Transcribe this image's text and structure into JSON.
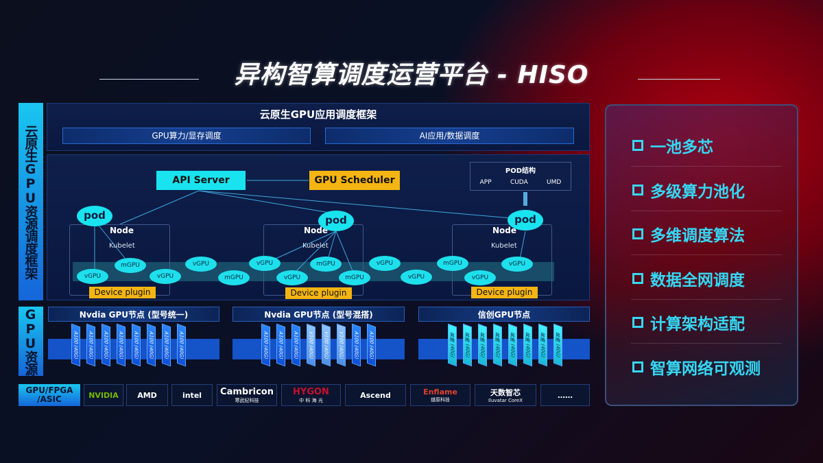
{
  "title": "异构智算调度运营平台 - HISO",
  "left_labels": {
    "framework": "云原生GPU资源调度框架",
    "gpu": "GPU资源"
  },
  "framework": {
    "header": "云原生GPU应用调度框架",
    "bar1": "GPU算力/显存调度",
    "bar2": "AI应用/数据调度",
    "api_server": "API Server",
    "gpu_scheduler": "GPU Scheduler",
    "pod_struct": {
      "title": "POD结构",
      "items": [
        "APP",
        "CUDA",
        "UMD"
      ]
    },
    "pod": "pod",
    "node": "Node",
    "kubelet": "Kubelet",
    "device_plugin": "Device plugin",
    "chips": [
      "vGPU",
      "mGPU",
      "vGPU",
      "vGPU",
      "mGPU",
      "vGPU",
      "vGPU",
      "mGPU",
      "mGPU",
      "vGPU",
      "vGPU",
      "mGPU",
      "vGPU",
      "vGPU"
    ]
  },
  "gpu_nodes": [
    {
      "title": "Nvdia GPU节点 (型号统一)",
      "cards": [
        "A100 (40G)",
        "A100 (40G)",
        "A100 (40G)",
        "A100 (40G)",
        "A100 (40G)",
        "A100 (40G)",
        "A100 (40G)",
        "A100 (40G)"
      ]
    },
    {
      "title": "Nvdia GPU节点 (型号混搭)",
      "cards": [
        "A100 (40G)",
        "A100 (40G)",
        "A100 (40G)",
        "V100 (40G)",
        "V100 (40G)",
        "V100 (40G)",
        "A100 (40G)",
        "A100 (40G)"
      ]
    },
    {
      "title": "信创GPU节点",
      "cards": [
        "昇腾 (40G)",
        "昇腾 (40G)",
        "昇腾 (40G)",
        "昇腾 (40G)",
        "昇腾 (40G)",
        "昇腾 (40G)",
        "昇腾 (40G)",
        "昇腾 (40G)"
      ]
    }
  ],
  "vendors": {
    "label": "GPU/FPGA /ASIC",
    "items": [
      {
        "name": "NVIDIA",
        "sub": ""
      },
      {
        "name": "AMD",
        "sub": ""
      },
      {
        "name": "intel",
        "sub": ""
      },
      {
        "name": "Cambricon",
        "sub": "寒武纪科技"
      },
      {
        "name": "HYGON",
        "sub": "中 科 海 光"
      },
      {
        "name": "Ascend",
        "sub": ""
      },
      {
        "name": "Enflame",
        "sub": "燧原科技"
      },
      {
        "name": "天数智芯",
        "sub": "Iluvatar CoreX"
      },
      {
        "name": "……",
        "sub": ""
      }
    ]
  },
  "features": [
    "一池多芯",
    "多级算力池化",
    "多维调度算法",
    "数据全网调度",
    "计算架构适配",
    "智算网络可观测"
  ],
  "colors": {
    "cyan": "#19e3ef",
    "orange": "#f4b513",
    "blue": "#1553c9",
    "feature": "#35d8f4"
  }
}
